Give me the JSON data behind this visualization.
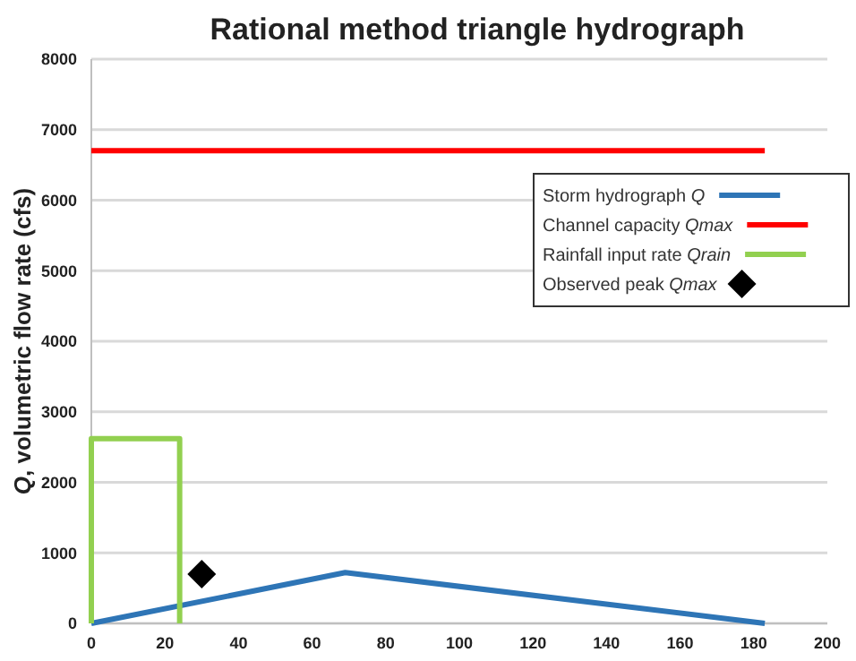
{
  "chart_data": {
    "type": "line",
    "title": "Rational method triangle hydrograph",
    "ylabel": "Q, volumetric flow rate (cfs)",
    "xlim": [
      0,
      200
    ],
    "xticks": [
      0,
      20,
      40,
      60,
      80,
      100,
      120,
      140,
      160,
      180,
      200
    ],
    "ylim": [
      0,
      8000
    ],
    "yticks": [
      0,
      1000,
      2000,
      3000,
      4000,
      5000,
      6000,
      7000,
      8000
    ],
    "grid": "y",
    "legend": "top right",
    "line_style": "solid",
    "marker": "none",
    "series": [
      {
        "name": "Storm hydrograph Q",
        "color": "#2e75b6",
        "x": [
          0,
          69,
          183
        ],
        "values": [
          0,
          720,
          0
        ]
      },
      {
        "name": "Channel capacity Qmax",
        "color": "#ff0000",
        "x": [
          0,
          183
        ],
        "values": [
          6700,
          6700
        ]
      },
      {
        "name": "Rainfall input rate Qrain",
        "color": "#92d050",
        "x": [
          0,
          0,
          24,
          24
        ],
        "values": [
          0,
          2620,
          2620,
          0
        ]
      },
      {
        "name": "Observed peak Qmax",
        "type": "scatter",
        "marker": "diamond",
        "color": "#000000",
        "x": [
          30
        ],
        "values": [
          700
        ]
      }
    ]
  }
}
